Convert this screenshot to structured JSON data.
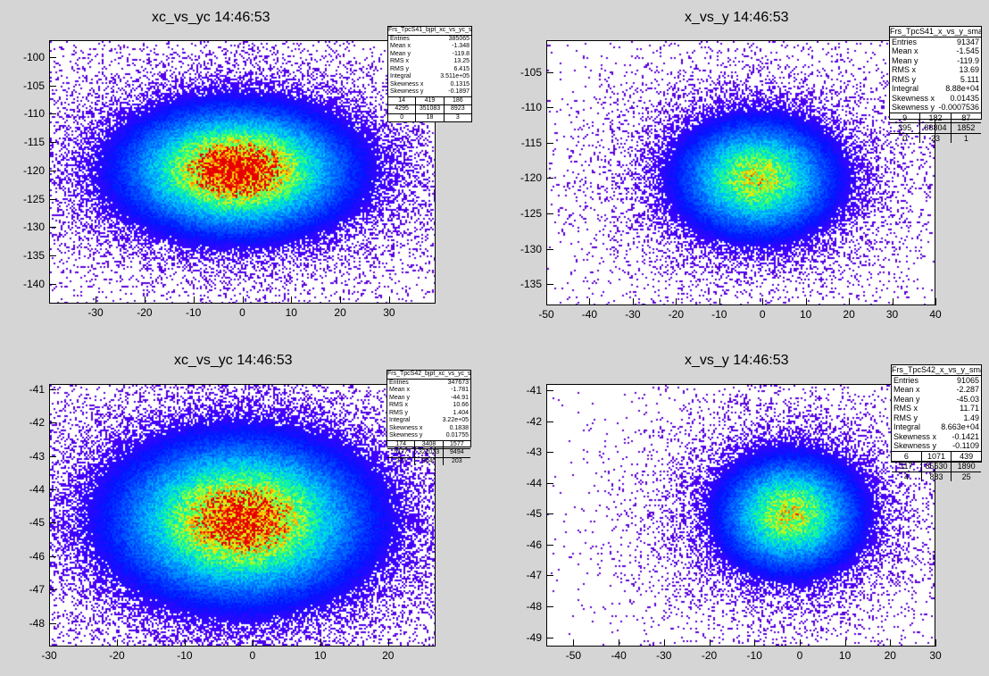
{
  "panels": [
    {
      "title": "xc_vs_yc  14:46:53",
      "chart_data": {
        "type": "heatmap",
        "xlim": [
          -39.5,
          39.5
        ],
        "ylim": [
          -143.5,
          -97
        ],
        "x_ticks": [
          "-30",
          "-20",
          "-10",
          "0",
          "10",
          "20",
          "30"
        ],
        "x_tick_values": [
          -30,
          -20,
          -10,
          0,
          10,
          20,
          30
        ],
        "y_ticks": [
          "-100",
          "-105",
          "-110",
          "-115",
          "-120",
          "-125",
          "-130",
          "-135",
          "-140"
        ],
        "y_tick_values": [
          -100,
          -105,
          -110,
          -115,
          -120,
          -125,
          -130,
          -135,
          -140
        ],
        "center": [
          -1.3,
          -119.8
        ],
        "sigma": [
          13.25,
          6.4
        ],
        "peak_density": 1.0
      },
      "stats": {
        "name": "Frs_TpcS41_bjpt_xc_vs_yc_smart",
        "rows": [
          {
            "k": "Entries",
            "v": "385065"
          },
          {
            "k": "Mean x",
            "v": "-1.348"
          },
          {
            "k": "Mean y",
            "v": "-119.8"
          },
          {
            "k": "RMS x",
            "v": "13.25"
          },
          {
            "k": "RMS y",
            "v": "6.415"
          },
          {
            "k": "Integral",
            "v": "3.511e+05"
          },
          {
            "k": "Skewness x",
            "v": "0.1315"
          },
          {
            "k": "Skewness y",
            "v": "-0.1897"
          }
        ],
        "grid": [
          [
            "14",
            "419",
            "186"
          ],
          [
            "4295",
            "351083",
            "8923"
          ],
          [
            "0",
            "18",
            "3"
          ]
        ]
      }
    },
    {
      "title": "x_vs_y  14:46:53",
      "chart_data": {
        "type": "heatmap",
        "xlim": [
          -50,
          40
        ],
        "ylim": [
          -138,
          -100.5
        ],
        "x_ticks": [
          "-50",
          "-40",
          "-30",
          "-20",
          "-10",
          "0",
          "10",
          "20",
          "30",
          "40"
        ],
        "x_tick_values": [
          -50,
          -40,
          -30,
          -20,
          -10,
          0,
          10,
          20,
          30,
          40
        ],
        "y_ticks": [
          "-105",
          "-110",
          "-115",
          "-120",
          "-125",
          "-130",
          "-135"
        ],
        "y_tick_values": [
          -105,
          -110,
          -115,
          -120,
          -125,
          -130,
          -135
        ],
        "center": [
          -1.5,
          -119.9
        ],
        "sigma": [
          10.5,
          4.8
        ],
        "peak_density": 0.75
      },
      "stats": {
        "name": "Frs_TpcS41_x_vs_y_smart",
        "rows": [
          {
            "k": "Entries",
            "v": "91347"
          },
          {
            "k": "Mean x",
            "v": "-1.545"
          },
          {
            "k": "Mean y",
            "v": "-119.9"
          },
          {
            "k": "RMS x",
            "v": "13.69"
          },
          {
            "k": "RMS y",
            "v": "5.111"
          },
          {
            "k": "Integral",
            "v": "8.88e+04"
          },
          {
            "k": "Skewness x",
            "v": "0.01435"
          },
          {
            "k": "Skewness y",
            "v": "-0.0007536"
          }
        ],
        "grid": [
          [
            "9",
            "182",
            "87"
          ],
          [
            "395",
            "88804",
            "1852"
          ],
          [
            "0",
            "23",
            "1"
          ]
        ]
      }
    },
    {
      "title": "xc_vs_yc  14:46:53",
      "chart_data": {
        "type": "heatmap",
        "xlim": [
          -30,
          27
        ],
        "ylim": [
          -48.7,
          -40.85
        ],
        "x_ticks": [
          "-30",
          "-20",
          "-10",
          "0",
          "10",
          "20"
        ],
        "x_tick_values": [
          -30,
          -20,
          -10,
          0,
          10,
          20
        ],
        "y_ticks": [
          "-41",
          "-42",
          "-43",
          "-44",
          "-45",
          "-46",
          "-47",
          "-48"
        ],
        "y_tick_values": [
          -41,
          -42,
          -43,
          -44,
          -45,
          -46,
          -47,
          -48
        ],
        "center": [
          -1.8,
          -44.9
        ],
        "sigma": [
          10.66,
          1.4
        ],
        "peak_density": 0.95
      },
      "stats": {
        "name": "Frs_TpcS42_bjpt_xc_vs_yc_smart",
        "rows": [
          {
            "k": "Entries",
            "v": "347673"
          },
          {
            "k": "Mean x",
            "v": "-1.781"
          },
          {
            "k": "Mean y",
            "v": "-44.91"
          },
          {
            "k": "RMS x",
            "v": "10.66"
          },
          {
            "k": "RMS y",
            "v": "1.404"
          },
          {
            "k": "Integral",
            "v": "3.22e+05"
          },
          {
            "k": "Skewness x",
            "v": "0.1838"
          },
          {
            "k": "Skewness y",
            "v": "0.01755"
          }
        ],
        "grid": [
          [
            "174",
            "3408",
            "1577"
          ],
          [
            "5177",
            "322023",
            "9494"
          ],
          [
            "277",
            "3040",
            "203"
          ]
        ]
      }
    },
    {
      "title": "x_vs_y  14:46:53",
      "chart_data": {
        "type": "heatmap",
        "xlim": [
          -56,
          30
        ],
        "ylim": [
          -49.3,
          -40.8
        ],
        "x_ticks": [
          "-50",
          "-40",
          "-30",
          "-20",
          "-10",
          "0",
          "10",
          "20",
          "30"
        ],
        "x_tick_values": [
          -50,
          -40,
          -30,
          -20,
          -10,
          0,
          10,
          20,
          30
        ],
        "y_ticks": [
          "-41",
          "-42",
          "-43",
          "-44",
          "-45",
          "-46",
          "-47",
          "-48",
          "-49"
        ],
        "y_tick_values": [
          -41,
          -42,
          -43,
          -44,
          -45,
          -46,
          -47,
          -48,
          -49
        ],
        "center": [
          -2.3,
          -45.0
        ],
        "sigma": [
          9.0,
          1.1
        ],
        "peak_density": 0.75
      },
      "stats": {
        "name": "Frs_TpcS42_x_vs_y_smart",
        "rows": [
          {
            "k": "Entries",
            "v": "91065"
          },
          {
            "k": "Mean x",
            "v": "-2.287"
          },
          {
            "k": "Mean y",
            "v": "-45.03"
          },
          {
            "k": "RMS x",
            "v": "11.71"
          },
          {
            "k": "RMS y",
            "v": "1.49"
          },
          {
            "k": "Integral",
            "v": "8.663e+04"
          },
          {
            "k": "Skewness x",
            "v": "-0.1421"
          },
          {
            "k": "Skewness y",
            "v": "-0.1109"
          }
        ],
        "grid": [
          [
            "6",
            "1071",
            "439"
          ],
          [
            "117",
            "86630",
            "1890"
          ],
          [
            "4",
            "883",
            "25"
          ]
        ]
      }
    }
  ],
  "colors": {
    "background": "#d5d5d5",
    "frame": "#000000",
    "plot": "#ffffff"
  }
}
